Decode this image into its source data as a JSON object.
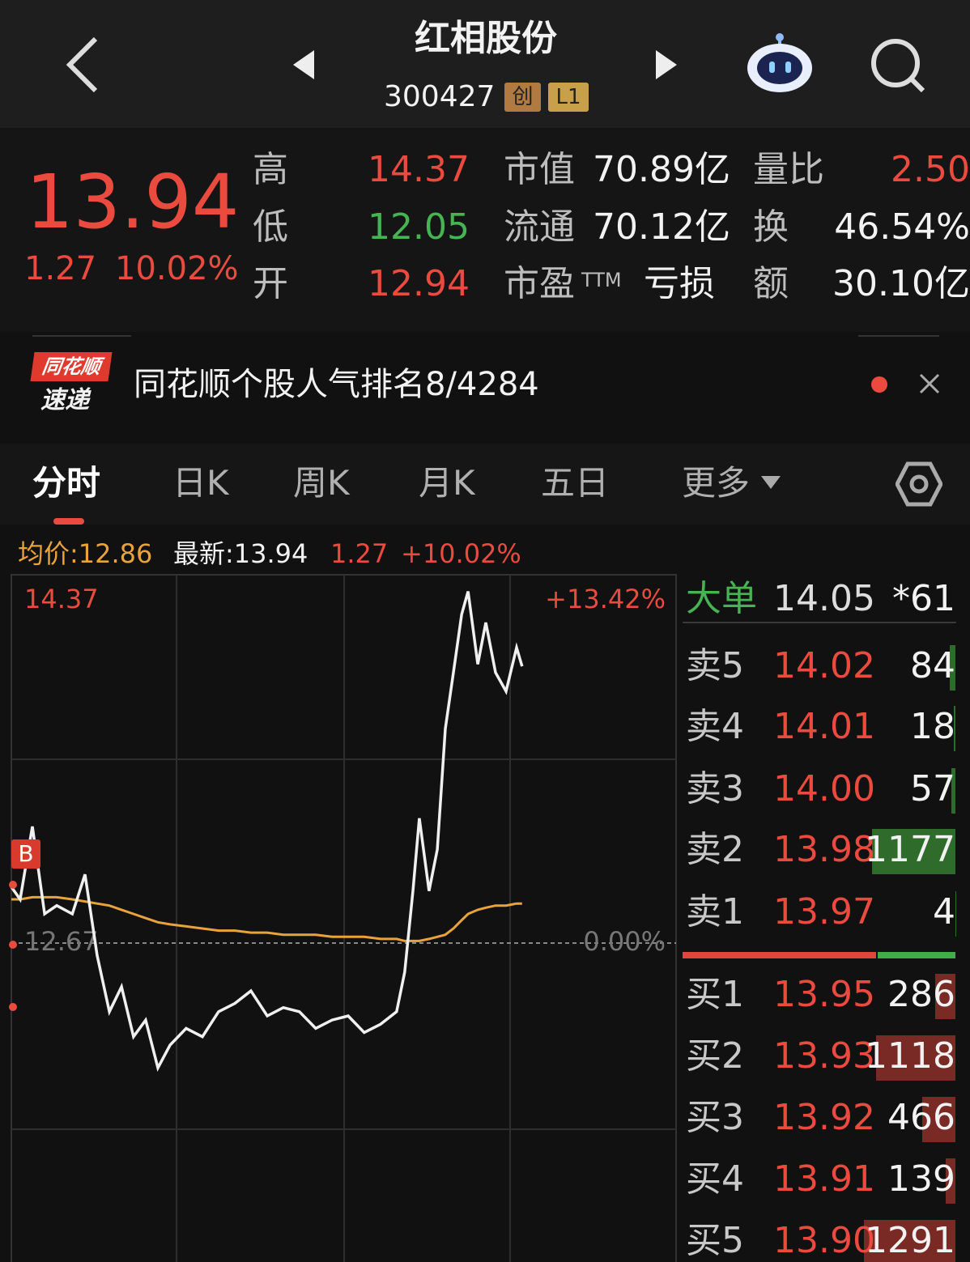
{
  "header": {
    "name": "红相股份",
    "code": "300427",
    "badges": [
      "创",
      "L1"
    ]
  },
  "quote": {
    "price": "13.94",
    "change": "1.27",
    "change_pct": "10.02%",
    "stats": [
      [
        "高",
        "14.37",
        "市值",
        "70.89亿",
        "量比",
        "2.50"
      ],
      [
        "低",
        "12.05",
        "流通",
        "70.12亿",
        "换",
        "46.54%"
      ],
      [
        "开",
        "12.94",
        "市盈",
        "亏损",
        "额",
        "30.10亿"
      ]
    ],
    "pe_suffix": "TTM"
  },
  "news": {
    "badge_top": "同花顺",
    "badge_bottom": "速递",
    "text": "同花顺个股人气排名8/4284"
  },
  "tabs": [
    "分时",
    "日K",
    "周K",
    "月K",
    "五日",
    "更多"
  ],
  "legend": {
    "avg": "均价:12.86",
    "latest": "最新:13.94",
    "change": "1.27",
    "pct": "+10.02%"
  },
  "chart_data": {
    "type": "line",
    "marker": "B",
    "x": [
      0,
      3.2,
      7.6,
      12,
      16.4,
      22,
      26.6,
      31,
      35.4,
      39.8,
      44.1,
      48.5,
      52.9,
      57.3,
      63.1,
      69,
      74.8,
      80.7,
      86.5,
      92.4,
      98.2,
      104,
      109.9,
      115.8,
      121.6,
      127.4,
      133.3,
      139.1,
      142,
      145,
      147.3,
      150.8,
      153.8,
      156.7,
      159.6,
      162.6,
      164.9,
      168.4,
      171.3,
      174.8,
      178.6,
      182.4,
      184.4
    ],
    "series": [
      {
        "name": "最新",
        "color": "#f0f0f0",
        "values": [
          12.94,
          12.88,
          13.23,
          12.81,
          12.85,
          12.81,
          13.0,
          12.61,
          12.34,
          12.46,
          12.22,
          12.3,
          12.07,
          12.18,
          12.26,
          12.22,
          12.34,
          12.38,
          12.44,
          12.32,
          12.36,
          12.34,
          12.26,
          12.3,
          12.32,
          12.24,
          12.28,
          12.34,
          12.53,
          12.92,
          13.27,
          12.92,
          13.12,
          13.7,
          13.97,
          14.25,
          14.36,
          14.01,
          14.21,
          13.97,
          13.88,
          14.09,
          14.0
        ]
      },
      {
        "name": "均价",
        "color": "#e8a33a",
        "values": [
          12.88,
          12.88,
          12.89,
          12.89,
          12.89,
          12.88,
          12.87,
          12.86,
          12.85,
          12.83,
          12.81,
          12.79,
          12.77,
          12.76,
          12.75,
          12.74,
          12.73,
          12.73,
          12.72,
          12.72,
          12.71,
          12.71,
          12.71,
          12.7,
          12.7,
          12.7,
          12.69,
          12.69,
          12.68,
          12.68,
          12.68,
          12.69,
          12.7,
          12.71,
          12.74,
          12.78,
          12.81,
          12.83,
          12.84,
          12.85,
          12.85,
          12.86,
          12.86
        ]
      }
    ],
    "xlim": [
      0,
      240
    ],
    "ylim": [
      10.97,
      14.37
    ],
    "yticks": [
      14.37,
      12.67
    ],
    "y2lim": [
      -13.42,
      13.42
    ],
    "y2ticks": [
      {
        "value": 13.42,
        "label": "+13.42%"
      },
      {
        "value": 0,
        "label": "0.00%"
      }
    ]
  },
  "order_book": {
    "big": {
      "label": "大单",
      "price": "14.05",
      "volume": "*61"
    },
    "asks": [
      {
        "label": "卖5",
        "price": "14.02",
        "volume": 84
      },
      {
        "label": "卖4",
        "price": "14.01",
        "volume": 18
      },
      {
        "label": "卖3",
        "price": "14.00",
        "volume": 57
      },
      {
        "label": "卖2",
        "price": "13.98",
        "volume": 1177
      },
      {
        "label": "卖1",
        "price": "13.97",
        "volume": 4
      }
    ],
    "bids": [
      {
        "label": "买1",
        "price": "13.95",
        "volume": 286
      },
      {
        "label": "买2",
        "price": "13.93",
        "volume": 1118
      },
      {
        "label": "买3",
        "price": "13.92",
        "volume": 466
      },
      {
        "label": "买4",
        "price": "13.91",
        "volume": 139
      },
      {
        "label": "买5",
        "price": "13.90",
        "volume": 1291
      }
    ]
  }
}
